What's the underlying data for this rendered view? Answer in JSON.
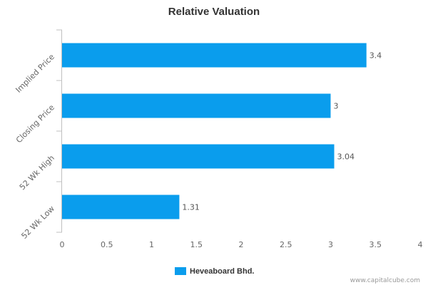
{
  "chart_data": {
    "type": "bar",
    "orientation": "horizontal",
    "title": "Relative Valuation",
    "categories": [
      "Implied Price",
      "Closing Price",
      "52 Wk High",
      "52 Wk Low"
    ],
    "series": [
      {
        "name": "Heveaboard Bhd.",
        "values": [
          3.4,
          3,
          3.04,
          1.31
        ],
        "color": "#0a9ded"
      }
    ],
    "data_labels": [
      "3.4",
      "3",
      "3.04",
      "1.31"
    ],
    "xlim": [
      0,
      4
    ],
    "x_ticks": [
      "0",
      "0.5",
      "1",
      "1.5",
      "2",
      "2.5",
      "3",
      "3.5",
      "4"
    ],
    "grid": false,
    "legend_position": "bottom-center"
  },
  "credit": "www.capitalcube.com"
}
